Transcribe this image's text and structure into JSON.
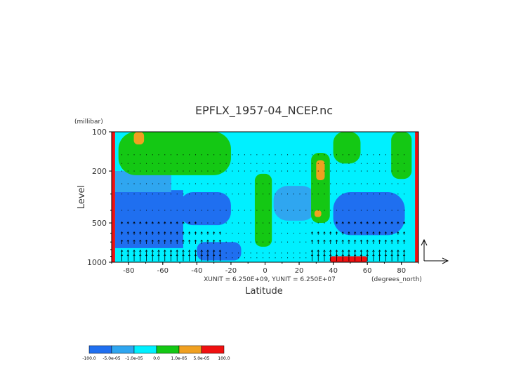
{
  "chart_data": {
    "type": "heatmap",
    "title": "EPFLX_1957-04_NCEP.nc",
    "xlabel": "Latitude",
    "ylabel": "Level",
    "y_units": "(millibar)",
    "x_units": "(degrees_north)",
    "xlim": [
      -90,
      90
    ],
    "ylim": [
      1000,
      100
    ],
    "y_scale": "log",
    "x_ticks": [
      -80,
      -60,
      -40,
      -20,
      0,
      20,
      40,
      60,
      80
    ],
    "x_tick_labels": [
      "-80",
      "-60",
      "-40",
      "-20",
      "0",
      "20",
      "40",
      "60",
      "80"
    ],
    "y_ticks": [
      100,
      200,
      500,
      1000
    ],
    "y_tick_labels": [
      "100",
      "200",
      "500",
      "1000"
    ],
    "vector_units": "XUNIT = 6.250E+09, YUNIT = 6.250E+07",
    "colorbar": {
      "colors": [
        "#1f6ff0",
        "#2fa6f0",
        "#00f0ff",
        "#14c814",
        "#f0a020",
        "#f01010"
      ],
      "labels": [
        "-100.0",
        "-5.0e-05",
        "-1.0e-05",
        "0.0",
        "1.0e-05",
        "5.0e-05",
        "100.0"
      ]
    },
    "regions": [
      {
        "level": "strong_negative",
        "color": "#1f6ff0",
        "lat": [
          -88,
          -48
        ],
        "p": [
          280,
          780
        ]
      },
      {
        "level": "strong_negative",
        "color": "#1f6ff0",
        "lat": [
          -50,
          -20
        ],
        "p": [
          290,
          520
        ]
      },
      {
        "level": "strong_negative",
        "color": "#1f6ff0",
        "lat": [
          40,
          82
        ],
        "p": [
          290,
          620
        ]
      },
      {
        "level": "strong_negative",
        "color": "#1f6ff0",
        "lat": [
          -40,
          -14
        ],
        "p": [
          700,
          970
        ]
      },
      {
        "level": "weak_negative",
        "color": "#2fa6f0",
        "lat": [
          -88,
          -55
        ],
        "p": [
          200,
          290
        ]
      },
      {
        "level": "weak_negative",
        "color": "#2fa6f0",
        "lat": [
          5,
          30
        ],
        "p": [
          260,
          480
        ]
      },
      {
        "level": "positive",
        "color": "#14c814",
        "lat": [
          -86,
          -20
        ],
        "p": [
          100,
          215
        ]
      },
      {
        "level": "positive",
        "color": "#14c814",
        "lat": [
          -6,
          4
        ],
        "p": [
          210,
          760
        ]
      },
      {
        "level": "positive",
        "color": "#14c814",
        "lat": [
          27,
          38
        ],
        "p": [
          145,
          500
        ]
      },
      {
        "level": "positive",
        "color": "#14c814",
        "lat": [
          40,
          56
        ],
        "p": [
          100,
          175
        ]
      },
      {
        "level": "positive",
        "color": "#14c814",
        "lat": [
          74,
          86
        ],
        "p": [
          100,
          230
        ]
      },
      {
        "level": "strong_positive",
        "color": "#f0a020",
        "lat": [
          -77,
          -71
        ],
        "p": [
          100,
          125
        ]
      },
      {
        "level": "strong_positive",
        "color": "#f0a020",
        "lat": [
          30,
          35
        ],
        "p": [
          165,
          235
        ]
      },
      {
        "level": "strong_positive",
        "color": "#f0a020",
        "lat": [
          29,
          33
        ],
        "p": [
          400,
          450
        ]
      },
      {
        "level": "very_strong_positive",
        "color": "#f01010",
        "lat": [
          -90,
          -88
        ],
        "p": [
          100,
          1000
        ]
      },
      {
        "level": "very_strong_positive",
        "color": "#f01010",
        "lat": [
          88,
          90
        ],
        "p": [
          100,
          1000
        ]
      },
      {
        "level": "very_strong_positive",
        "color": "#f01010",
        "lat": [
          38,
          60
        ],
        "p": [
          900,
          1000
        ]
      }
    ]
  }
}
